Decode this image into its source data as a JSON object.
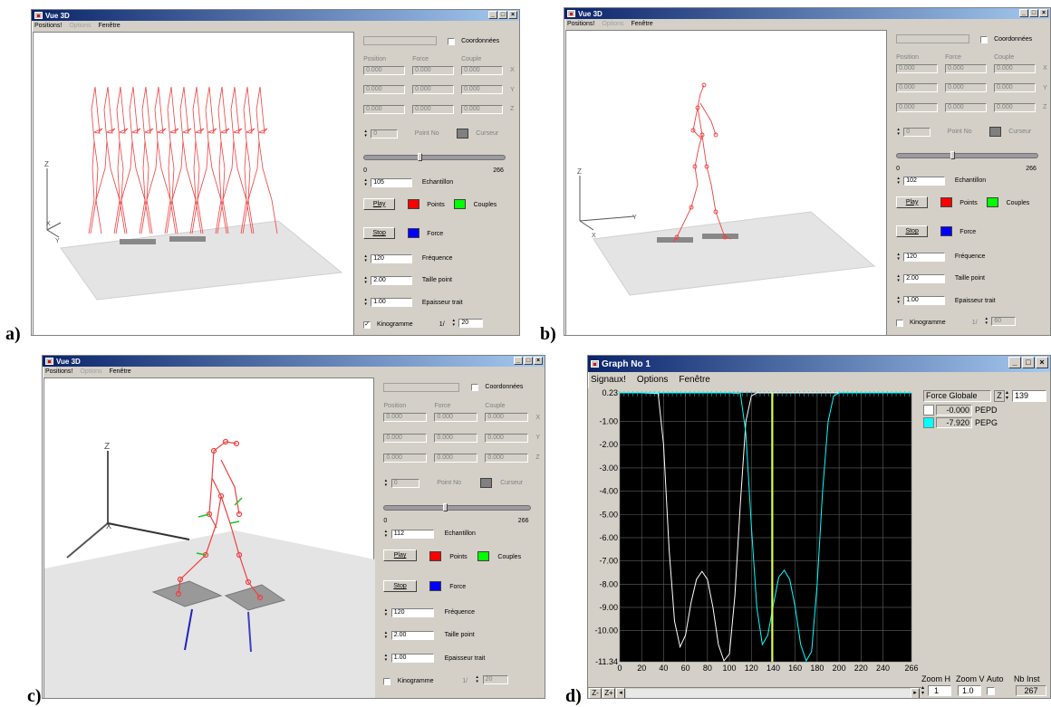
{
  "panels": [
    {
      "letter": "a)",
      "title": "Vue 3D",
      "menu": [
        "Positions!",
        "Options",
        "Fenêtre"
      ],
      "controls": {
        "coord_label": "Coordonnées",
        "headers": [
          "Position",
          "Force",
          "Couple"
        ],
        "rows": [
          [
            "0.000",
            "0.000",
            "0.000"
          ],
          [
            "0.000",
            "0.000",
            "0.000"
          ],
          [
            "0.000",
            "0.000",
            "0.000"
          ]
        ],
        "row_axes": [
          "X",
          "Y",
          "Z"
        ],
        "point_no_value": "0",
        "point_no_label": "Point No",
        "cursor_label": "Curseur",
        "slider_min": "0",
        "slider_max": "266",
        "slider_fraction": 0.4,
        "echantillon_value": "105",
        "echantillon_label": "Echantillon",
        "play_label": "Play",
        "points_label": "Points",
        "couples_label": "Couples",
        "stop_label": "Stop",
        "force_label": "Force",
        "frequence_value": "120",
        "frequence_label": "Fréquence",
        "taille_value": "2.00",
        "taille_label": "Taille point",
        "epaisseur_value": "1.00",
        "epaisseur_label": "Epaisseur trait",
        "kinogramme_label": "Kinogramme",
        "kinogramme_checked": true,
        "ratio_label": "1/",
        "ratio_value": "20"
      },
      "axis_z": "Z",
      "axis_x": "X",
      "axis_y": "Y"
    },
    {
      "letter": "b)",
      "title": "Vue 3D",
      "menu": [
        "Positions!",
        "Options",
        "Fenêtre"
      ],
      "controls": {
        "coord_label": "Coordonnées",
        "headers": [
          "Position",
          "Force",
          "Couple"
        ],
        "rows": [
          [
            "0.000",
            "0.000",
            "0.000"
          ],
          [
            "0.000",
            "0.000",
            "0.000"
          ],
          [
            "0.000",
            "0.000",
            "0.000"
          ]
        ],
        "row_axes": [
          "X",
          "Y",
          "Z"
        ],
        "point_no_value": "0",
        "point_no_label": "Point No",
        "cursor_label": "Curseur",
        "slider_min": "0",
        "slider_max": "266",
        "slider_fraction": 0.4,
        "echantillon_value": "102",
        "echantillon_label": "Echantillon",
        "play_label": "Play",
        "points_label": "Points",
        "couples_label": "Couples",
        "stop_label": "Stop",
        "force_label": "Force",
        "frequence_value": "120",
        "frequence_label": "Fréquence",
        "taille_value": "2.00",
        "taille_label": "Taille point",
        "epaisseur_value": "1.00",
        "epaisseur_label": "Epaisseur trait",
        "kinogramme_label": "Kinogramme",
        "kinogramme_checked": false,
        "ratio_label": "1/",
        "ratio_value": "60"
      },
      "axis_z": "Z",
      "axis_x": "X",
      "axis_y": "Y"
    },
    {
      "letter": "c)",
      "title": "Vue 3D",
      "menu": [
        "Positions!",
        "Options",
        "Fenêtre"
      ],
      "controls": {
        "coord_label": "Coordonnées",
        "headers": [
          "Position",
          "Force",
          "Couple"
        ],
        "rows": [
          [
            "0.000",
            "0.000",
            "0.000"
          ],
          [
            "0.000",
            "0.000",
            "0.000"
          ],
          [
            "0.000",
            "0.000",
            "0.000"
          ]
        ],
        "row_axes": [
          "X",
          "Y",
          "Z"
        ],
        "point_no_value": "0",
        "point_no_label": "Point No",
        "cursor_label": "Curseur",
        "slider_min": "0",
        "slider_max": "266",
        "slider_fraction": 0.42,
        "echantillon_value": "112",
        "echantillon_label": "Echantillon",
        "play_label": "Play",
        "points_label": "Points",
        "couples_label": "Couples",
        "stop_label": "Stop",
        "force_label": "Force",
        "frequence_value": "120",
        "frequence_label": "Fréquence",
        "taille_value": "2.00",
        "taille_label": "Taille point",
        "epaisseur_value": "1.00",
        "epaisseur_label": "Epaisseur trait",
        "kinogramme_label": "Kinogramme",
        "kinogramme_checked": false,
        "ratio_label": "1/",
        "ratio_value": "20"
      },
      "axis_z": "Z",
      "axis_x": "X",
      "axis_y": "Y"
    }
  ],
  "graph": {
    "letter": "d)",
    "title": "Graph No 1",
    "menu": [
      "Signaux!",
      "Options",
      "Fenêtre"
    ],
    "side": {
      "header": "Force Globale",
      "z_label": "Z",
      "z_value": "139",
      "signals": [
        {
          "value": "-0.000",
          "name": "PEPD",
          "color": "#ffffff"
        },
        {
          "value": "-7.920",
          "name": "PEPG",
          "color": "#00ffff"
        }
      ],
      "zoom_h_label": "Zoom H",
      "zoom_h_value": "1",
      "zoom_v_label": "Zoom V",
      "zoom_v_value": "1.0",
      "auto_label": "Auto",
      "nb_inst_label": "Nb Inst",
      "nb_inst_value": "267"
    },
    "bottom_buttons": [
      "Z-",
      "Z+"
    ],
    "chart_data": {
      "type": "line",
      "xlim": [
        0,
        266
      ],
      "ylim": [
        -11.34,
        0.23
      ],
      "x_ticks": [
        0,
        20,
        40,
        60,
        80,
        100,
        120,
        140,
        160,
        180,
        200,
        220,
        240,
        266
      ],
      "y_tick_labels": [
        "0.23",
        "-1.00",
        "-2.00",
        "-3.00",
        "-4.00",
        "-5.00",
        "-6.00",
        "-7.00",
        "-8.00",
        "-9.00",
        "-10.00",
        "-11.34"
      ],
      "y_tick_values": [
        0.23,
        -1,
        -2,
        -3,
        -4,
        -5,
        -6,
        -7,
        -8,
        -9,
        -10,
        -11.34
      ],
      "cursor_x": 139,
      "series": [
        {
          "name": "PEPD",
          "color": "#ffffff",
          "x": [
            0,
            20,
            35,
            40,
            45,
            50,
            55,
            60,
            65,
            70,
            75,
            80,
            85,
            90,
            95,
            100,
            105,
            110,
            115,
            120,
            125,
            130,
            135,
            140,
            150,
            200,
            266
          ],
          "y": [
            0.23,
            0.23,
            0.2,
            -2.0,
            -6.5,
            -9.6,
            -10.7,
            -10.2,
            -8.8,
            -7.8,
            -7.45,
            -7.8,
            -9.0,
            -10.6,
            -11.3,
            -11.0,
            -8.5,
            -4.5,
            -1.0,
            0.1,
            0.23,
            0.23,
            0.23,
            0.23,
            0.23,
            0.23,
            0.23
          ]
        },
        {
          "name": "PEPG",
          "color": "#00ffff",
          "x": [
            0,
            100,
            110,
            115,
            120,
            125,
            130,
            135,
            140,
            145,
            150,
            155,
            160,
            165,
            170,
            175,
            180,
            185,
            190,
            195,
            200,
            210,
            266
          ],
          "y": [
            0.23,
            0.23,
            0.2,
            -1.5,
            -5.5,
            -9.0,
            -10.6,
            -10.2,
            -8.9,
            -7.7,
            -7.4,
            -7.8,
            -9.0,
            -10.6,
            -11.3,
            -10.9,
            -8.0,
            -4.0,
            -1.0,
            0.1,
            0.23,
            0.23,
            0.23
          ]
        }
      ]
    }
  }
}
